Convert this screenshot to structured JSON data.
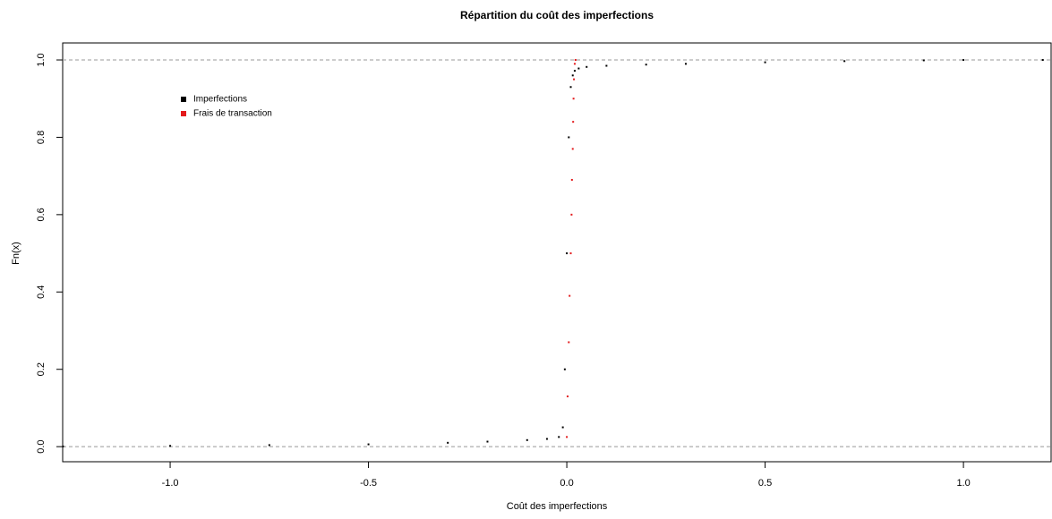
{
  "chart_data": {
    "type": "scatter",
    "title": "Répartition du coût des imperfections",
    "x_label": "Coût des imperfections",
    "y_label": "Fn(x)",
    "series": [
      {
        "name": "Imperfections",
        "color": "#000000",
        "x": [
          -1.27,
          -1.0,
          -0.75,
          -0.5,
          -0.3,
          -0.2,
          -0.1,
          -0.05,
          -0.02,
          -0.01,
          -0.005,
          0,
          0.005,
          0.01,
          0.015,
          0.02,
          0.03,
          0.05,
          0.1,
          0.2,
          0.3,
          0.5,
          0.7,
          0.9,
          1.0,
          1.2
        ],
        "values": [
          0.0005,
          0.002,
          0.004,
          0.006,
          0.01,
          0.013,
          0.017,
          0.02,
          0.025,
          0.05,
          0.2,
          0.5,
          0.8,
          0.93,
          0.96,
          0.972,
          0.978,
          0.982,
          0.985,
          0.988,
          0.99,
          0.994,
          0.997,
          0.999,
          1.0,
          1.0
        ]
      },
      {
        "name": "Frais de transaction",
        "color": "#e31a1c",
        "x": [
          0.0,
          0.002,
          0.005,
          0.007,
          0.01,
          0.012,
          0.013,
          0.015,
          0.016,
          0.017,
          0.018,
          0.02,
          0.022
        ],
        "values": [
          0.025,
          0.13,
          0.27,
          0.39,
          0.5,
          0.6,
          0.69,
          0.77,
          0.84,
          0.9,
          0.95,
          0.99,
          1.0
        ]
      }
    ],
    "hlines": [
      0,
      1
    ],
    "legend": "topleft",
    "xlim": [
      -1.271,
      1.221
    ],
    "ylim": [
      -0.039,
      1.044
    ],
    "xticks": [
      {
        "value": -1,
        "label": "-1.0"
      },
      {
        "value": -0.5,
        "label": "-0.5"
      },
      {
        "value": 0,
        "label": "0.0"
      },
      {
        "value": 0.5,
        "label": "0.5"
      },
      {
        "value": 1,
        "label": "1.0"
      }
    ],
    "yticks": [
      {
        "value": 0,
        "label": "0.0"
      },
      {
        "value": 0.2,
        "label": "0.2"
      },
      {
        "value": 0.4,
        "label": "0.4"
      },
      {
        "value": 0.6,
        "label": "0.6"
      },
      {
        "value": 0.8,
        "label": "0.8"
      },
      {
        "value": 1,
        "label": "1.0"
      }
    ]
  }
}
